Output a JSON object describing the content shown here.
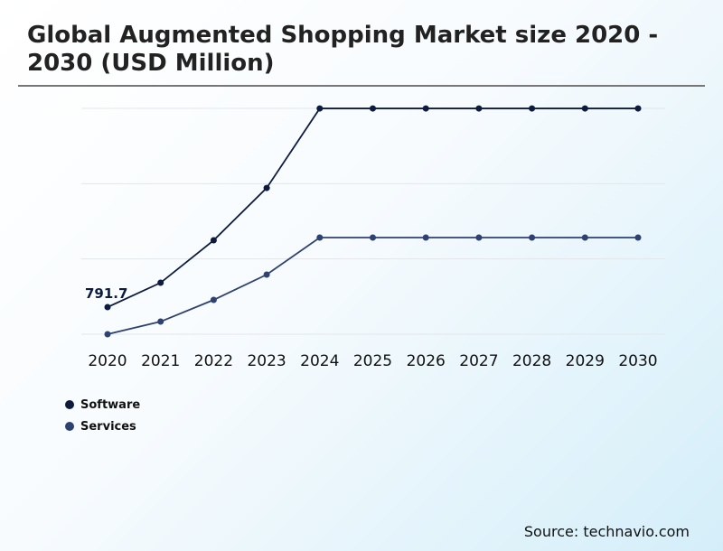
{
  "chart_data": {
    "type": "line",
    "title": "Global Augmented Shopping Market size 2020 - 2030 (USD Million)",
    "categories": [
      "2020",
      "2021",
      "2022",
      "2023",
      "2024",
      "2025",
      "2026",
      "2027",
      "2028",
      "2029",
      "2030"
    ],
    "series": [
      {
        "name": "Software",
        "color": "#0d1b3e",
        "values": [
          791.7,
          1504,
          2745,
          4275,
          6598,
          6598,
          6598,
          6598,
          6598,
          6598,
          6598
        ]
      },
      {
        "name": "Services",
        "color": "#2e4272",
        "values": [
          0,
          369,
          1003,
          1742,
          2824,
          2824,
          2824,
          2824,
          2824,
          2824,
          2824
        ]
      }
    ],
    "annotations": [
      {
        "series": "Software",
        "category": "2020",
        "label": "791.7"
      }
    ],
    "ylim": [
      0,
      6600
    ],
    "grid": true,
    "y_axis_labels_shown": false,
    "legend_placement": "bottom-left"
  },
  "source": "Source: technavio.com"
}
